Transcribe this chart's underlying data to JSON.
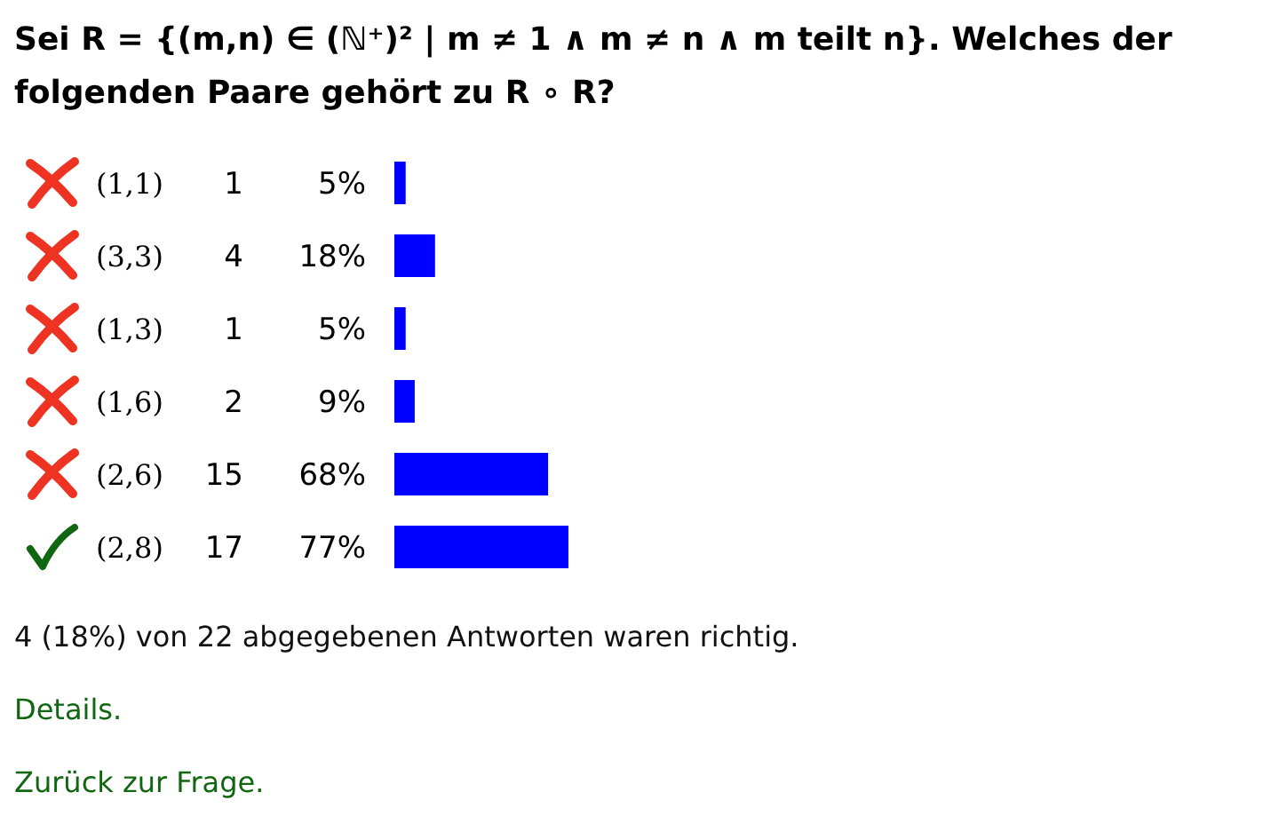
{
  "chart_data": {
    "type": "bar",
    "orientation": "horizontal",
    "title": "Sei R = {(m,n) ∈ (ℕ⁺)² | m ≠ 1 ∧ m ≠ n ∧ m teilt n}. Welches der folgenden Paare gehört zu R ∘ R?",
    "categories": [
      "(1,1)",
      "(3,3)",
      "(1,3)",
      "(1,6)",
      "(2,6)",
      "(2,8)"
    ],
    "values": [
      5,
      18,
      5,
      9,
      68,
      77
    ],
    "value_labels": [
      "5%",
      "18%",
      "5%",
      "9%",
      "68%",
      "77%"
    ],
    "color": "#0000ff",
    "annotations": [
      "1",
      "4",
      "1",
      "2",
      "15",
      "17",
      "4 (18%) von 22 abgegebenen Antworten waren richtig.",
      "Details.",
      "Zurück zur Frage."
    ]
  }
}
